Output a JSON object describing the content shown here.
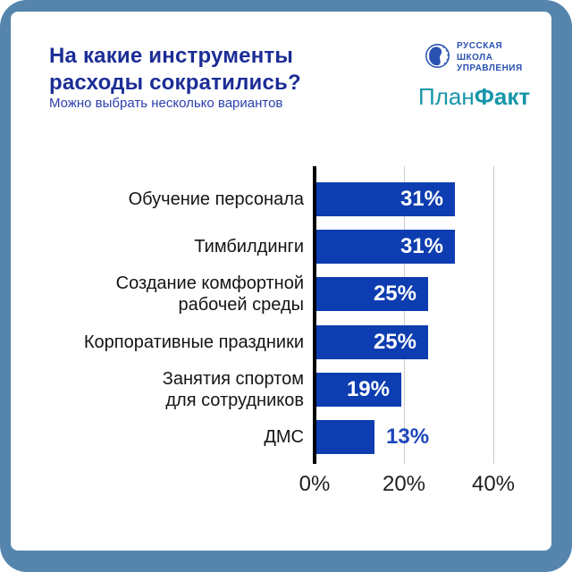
{
  "frame": {
    "border_color": "#5585ad",
    "card_color": "#ffffff"
  },
  "header": {
    "title_line1": "На какие инструменты",
    "title_line2": "расходы сократились?",
    "title_color": "#1c2d96",
    "subtitle": "Можно выбрать несколько вариантов",
    "subtitle_color": "#2b3fae"
  },
  "logos": {
    "rsu": {
      "line1": "РУССКАЯ",
      "line2": "ШКОЛА",
      "line3": "УПРАВЛЕНИЯ",
      "color": "#2a52b0"
    },
    "planfact": {
      "part1": "План",
      "part2": "Факт",
      "color": "#1796a9"
    }
  },
  "chart_data": {
    "type": "bar",
    "orientation": "horizontal",
    "title": "На какие инструменты расходы сократились?",
    "subtitle": "Можно выбрать несколько вариантов",
    "categories": [
      "Обучение персонала",
      "Тимбилдинги",
      "Создание комфортной\nрабочей среды",
      "Корпоративные праздники",
      "Занятия спортом\nдля сотрудников",
      "ДМС"
    ],
    "values": [
      31,
      31,
      25,
      25,
      19,
      13
    ],
    "value_labels": [
      "31%",
      "31%",
      "25%",
      "25%",
      "19%",
      "13%"
    ],
    "label_inside": [
      true,
      true,
      true,
      true,
      true,
      false
    ],
    "x_ticks": [
      "0%",
      "20%",
      "40%"
    ],
    "x_tick_values": [
      0,
      20,
      40
    ],
    "xlim": [
      0,
      44
    ],
    "grid": "vertical",
    "bar_color": "#0d3db0",
    "outside_label_color": "#1e46bb",
    "axis_color": "#000000",
    "grid_color": "#cbcbcb"
  }
}
